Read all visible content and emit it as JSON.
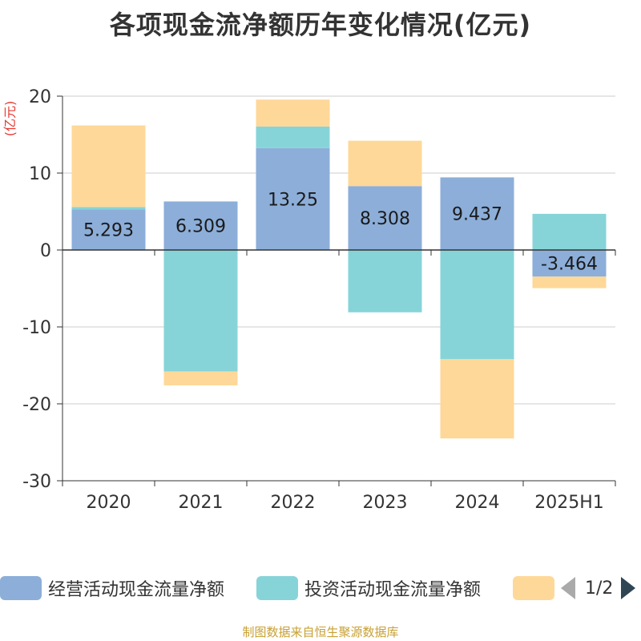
{
  "title": "各项现金流净额历年变化情况(亿元)",
  "source": "制图数据来自恒生聚源数据库",
  "legend_pager": {
    "text": "1/2"
  },
  "colors": {
    "axis_unit": "#e8382f",
    "grid": "#cccccc",
    "axis": "#333333",
    "text": "#333333"
  },
  "chart_data": {
    "type": "bar",
    "stacked": true,
    "unit_label": "(亿元)",
    "categories": [
      "2020",
      "2021",
      "2022",
      "2023",
      "2024",
      "2025H1"
    ],
    "ylim": [
      -30,
      20
    ],
    "yticks": [
      20,
      10,
      0,
      -10,
      -20,
      -30
    ],
    "grid": true,
    "legend_position": "bottom",
    "series": [
      {
        "name": "经营活动现金流量净额",
        "color": "#8caed9",
        "show_labels": true,
        "values": [
          5.293,
          6.309,
          13.25,
          8.308,
          9.437,
          -3.464
        ],
        "labels": [
          "5.293",
          "6.309",
          "13.25",
          "8.308",
          "9.437",
          "-3.464"
        ]
      },
      {
        "name": "投资活动现金流量净额",
        "color": "#86d4d8",
        "show_labels": false,
        "values": [
          0.3,
          -15.8,
          2.8,
          -8.1,
          -14.2,
          4.7
        ]
      },
      {
        "name": "",
        "color": "#fed898",
        "show_labels": false,
        "values": [
          10.6,
          -1.8,
          3.5,
          5.9,
          -10.3,
          -1.5
        ]
      }
    ]
  }
}
